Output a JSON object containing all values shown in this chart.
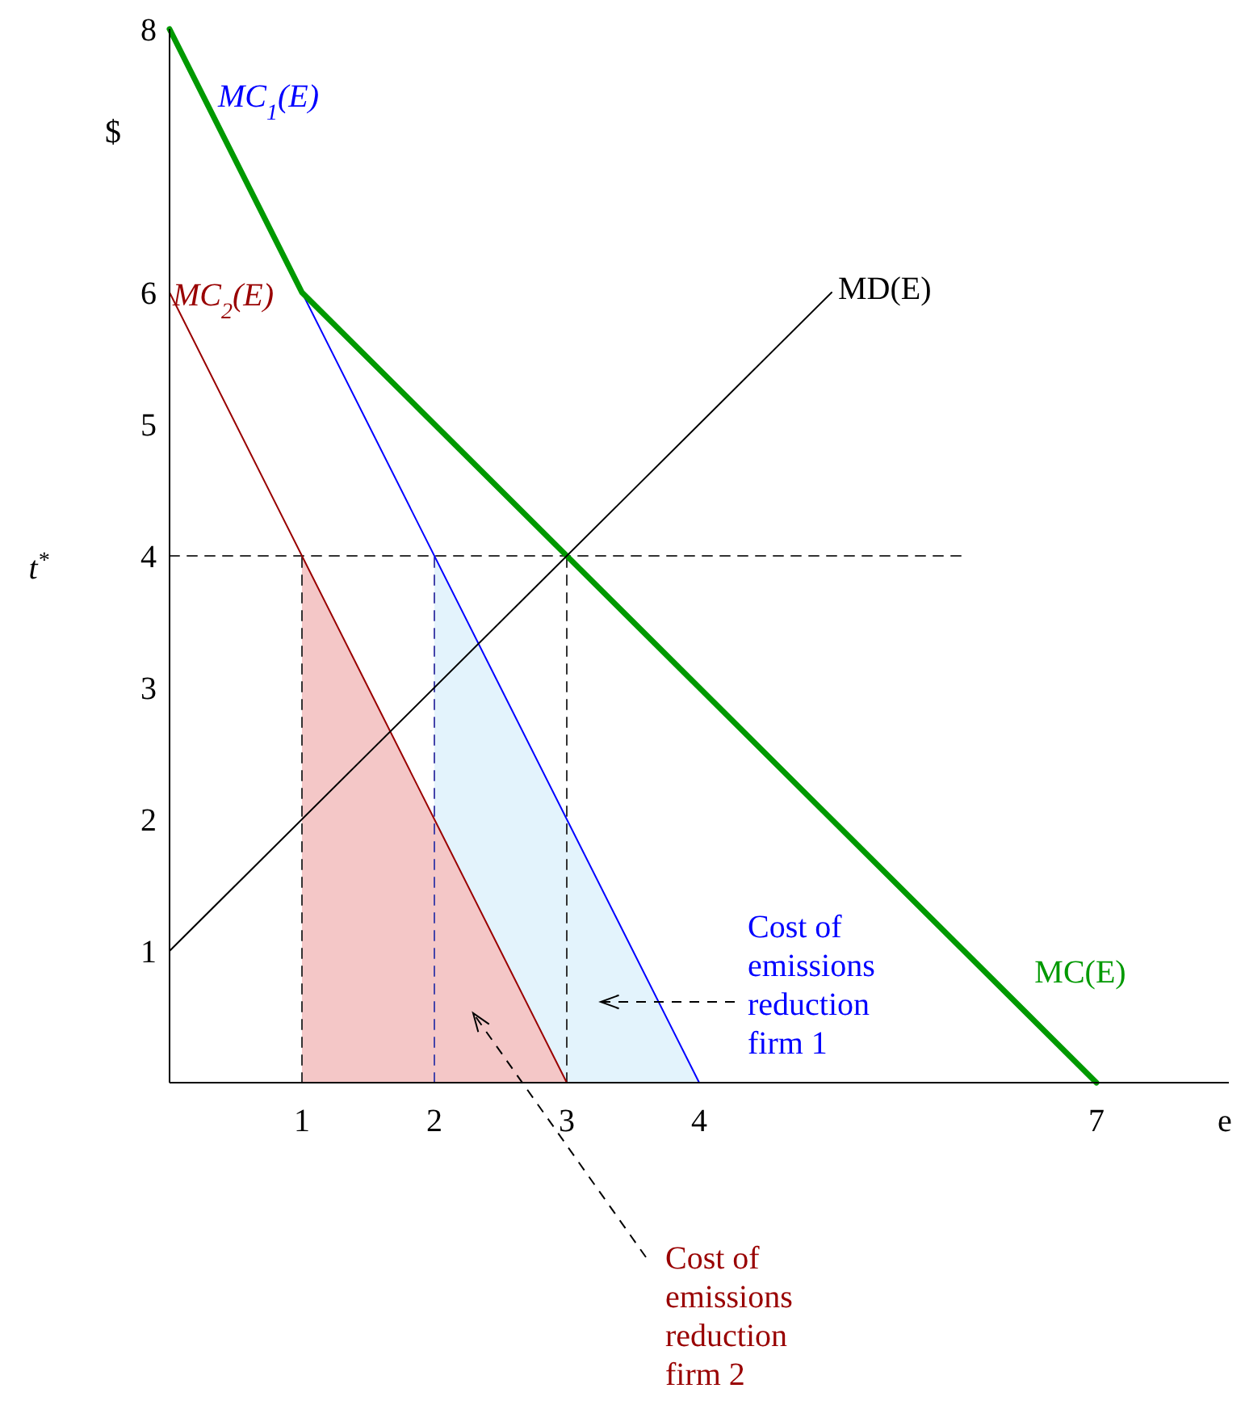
{
  "chart_data": {
    "type": "line",
    "xlabel": "e",
    "ylabel": "$",
    "xlim": [
      0,
      8
    ],
    "ylim": [
      0,
      8
    ],
    "xticks": [
      1,
      2,
      3,
      4,
      7
    ],
    "yticks": [
      1,
      2,
      3,
      4,
      5,
      6,
      8
    ],
    "grid": false,
    "legend": false,
    "marker": "none",
    "series": [
      {
        "type": "area",
        "color": "#e3f3fc",
        "x": [
          2,
          4
        ],
        "values": [
          4,
          0
        ]
      },
      {
        "type": "area",
        "color": "#f4c7c7",
        "x": [
          1,
          3
        ],
        "values": [
          4,
          0
        ]
      },
      {
        "color": "#333333",
        "line_style": "dashed",
        "x": [
          0,
          6
        ],
        "values": [
          4,
          4
        ]
      },
      {
        "color": "#333333",
        "line_style": "dashed",
        "x": [
          1,
          1
        ],
        "values": [
          0,
          4
        ]
      },
      {
        "color": "#4444aa",
        "line_style": "dashed",
        "x": [
          2,
          2
        ],
        "values": [
          0,
          4
        ]
      },
      {
        "color": "#333333",
        "line_style": "dashed",
        "x": [
          3,
          3
        ],
        "values": [
          0,
          4
        ]
      },
      {
        "name": "MC$_{2}$(E)",
        "color": "#990000",
        "line_style": "solid",
        "x": [
          0,
          3
        ],
        "values": [
          6,
          0
        ]
      },
      {
        "name": "MC$_{1}$(E)",
        "color": "#0000ff",
        "line_style": "solid",
        "x": [
          0,
          4
        ],
        "values": [
          8,
          0
        ]
      },
      {
        "name": "MC(E)",
        "color": "#009900",
        "line_style": "solid",
        "x": [
          0,
          1,
          7
        ],
        "values": [
          8,
          6,
          0
        ]
      },
      {
        "name": "MD(E)",
        "color": "#000000",
        "line_style": "solid",
        "x": [
          0,
          5
        ],
        "values": [
          1,
          6
        ]
      }
    ],
    "annotations": [
      "t$^{*}$",
      "Cost of emissions reduction firm 1",
      "Cost of emissions reduction firm 2"
    ]
  }
}
